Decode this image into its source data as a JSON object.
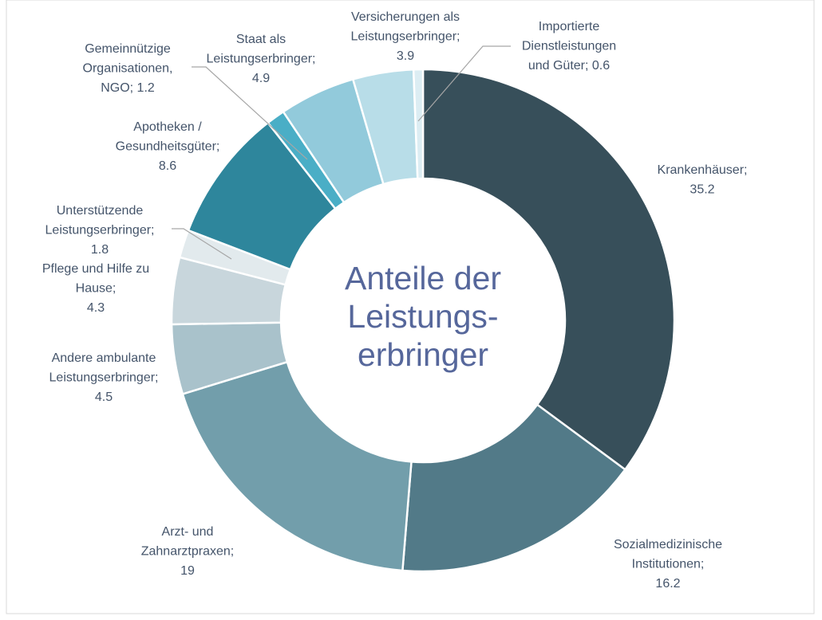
{
  "chart_data": {
    "type": "donut",
    "center_text": [
      "Anteile der",
      "Leistungs-",
      "erbringer"
    ],
    "labels": [
      [
        "Krankenhäuser;",
        "35.2"
      ],
      [
        "Sozialmedizinische",
        "Institutionen;",
        "16.2"
      ],
      [
        "Arzt- und",
        "Zahnarztpraxen;",
        "19"
      ],
      [
        "Andere ambulante",
        "Leistungserbringer;",
        "4.5"
      ],
      [
        "Pflege und Hilfe zu",
        "Hause;",
        "4.3"
      ],
      [
        "Unterstützende",
        "Leistungserbringer;",
        "1.8"
      ],
      [
        "Apotheken /",
        "Gesundheitsgüter;",
        "8.6"
      ],
      [
        "Gemeinnützige",
        "Organisationen,",
        "NGO; 1.2"
      ],
      [
        "Staat als",
        "Leistungserbringer;",
        "4.9"
      ],
      [
        "Versicherungen als",
        "Leistungserbringer;",
        "3.9"
      ],
      [
        "Importierte",
        "Dienstleistungen",
        "und Güter; 0.6"
      ]
    ],
    "values": [
      35.2,
      16.2,
      19,
      4.5,
      4.3,
      1.8,
      8.6,
      1.2,
      4.9,
      3.9,
      0.6
    ],
    "colors": [
      "#374f5a",
      "#527a88",
      "#729eab",
      "#a9c2cb",
      "#c8d6dc",
      "#e2eaed",
      "#2e869c",
      "#4aaec6",
      "#92cadb",
      "#b8dde8",
      "#dcedf3"
    ]
  }
}
